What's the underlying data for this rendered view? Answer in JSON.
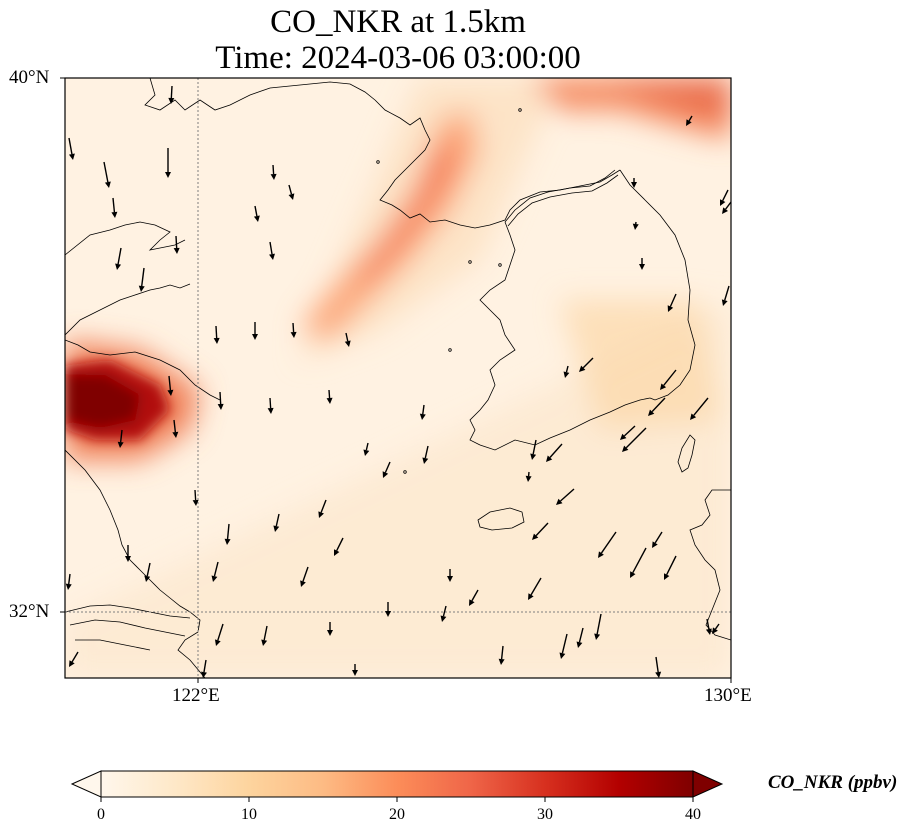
{
  "title": {
    "line1": "CO_NKR at 1.5km",
    "line2": "Time: 2024-03-06 03:00:00"
  },
  "axes": {
    "lat_labels": [
      "40°N",
      "32°N"
    ],
    "lon_labels": [
      "122°E",
      "130°E"
    ],
    "lat_range": [
      31,
      40
    ],
    "lon_range": [
      120,
      130
    ]
  },
  "colorbar": {
    "label": "CO_NKR (ppbv)",
    "ticks": [
      "0",
      "10",
      "20",
      "30",
      "40"
    ],
    "range": [
      0,
      40
    ],
    "extend": "both",
    "colormap": [
      "#fff7ec",
      "#fee8c8",
      "#fdd49e",
      "#fdbb84",
      "#fc8d59",
      "#ef6548",
      "#d7301f",
      "#b30000",
      "#7f0000"
    ]
  },
  "colors": {
    "coastline": "#000000",
    "gridline": "#7f7f7f",
    "wind_arrow": "#000000"
  }
}
